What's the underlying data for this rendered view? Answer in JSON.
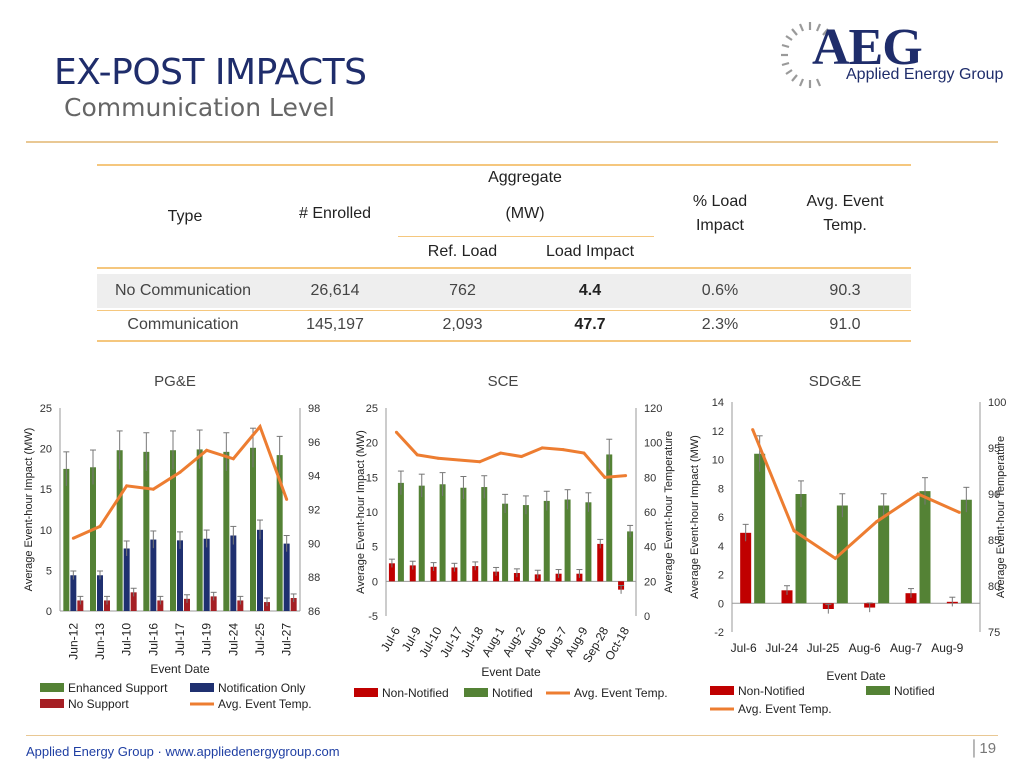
{
  "slide": {
    "title": "EX-POST IMPACTS",
    "subtitle": "Communication Level",
    "footer": "Applied Energy Group · www.appliedenergygroup.com",
    "page_number": "19"
  },
  "logo": {
    "brand": "AEG",
    "name": "Applied Energy Group"
  },
  "colors": {
    "title": "#1f2d6b",
    "rule": "#e9c894",
    "orange": "#ed7d31",
    "green": "#548235",
    "navy": "#1f3070",
    "red": "#c00000",
    "darkred": "#a51f24"
  },
  "summary_table": {
    "headers": {
      "type": "Type",
      "enrolled": "# Enrolled",
      "aggregate": "Aggregate",
      "mw": "(MW)",
      "ref_load": "Ref. Load",
      "load_impact": "Load Impact",
      "pct_load": "% Load",
      "pct_impact": "Impact",
      "avg_event": "Avg. Event",
      "temp": "Temp."
    },
    "rows": [
      {
        "type": "No Communication",
        "enrolled": "26,614",
        "ref_load": "762",
        "load_impact": "4.4",
        "pct": "0.6%",
        "temp": "90.3"
      },
      {
        "type": "Communication",
        "enrolled": "145,197",
        "ref_load": "2,093",
        "load_impact": "47.7",
        "pct": "2.3%",
        "temp": "91.0"
      }
    ]
  },
  "chart_data": [
    {
      "type": "bar",
      "title": "PG&E",
      "xlabel": "Event Date",
      "ylabel": "Average Event-hour Impact (MW)",
      "y2label": "",
      "ylim": [
        0,
        25
      ],
      "yticks": [
        0,
        5,
        10,
        15,
        20,
        25
      ],
      "y2lim": [
        86,
        98
      ],
      "y2ticks": [
        86,
        88,
        90,
        92,
        94,
        96,
        98
      ],
      "categories": [
        "Jun-12",
        "Jun-13",
        "Jul-10",
        "Jul-16",
        "Jul-17",
        "Jul-19",
        "Jul-24",
        "Jul-25",
        "Jul-27"
      ],
      "series": [
        {
          "name": "Enhanced Support",
          "color": "#548235",
          "values": [
            17.5,
            17.7,
            19.8,
            19.6,
            19.8,
            19.9,
            19.6,
            20.1,
            19.2
          ]
        },
        {
          "name": "Notification Only",
          "color": "#1f3070",
          "values": [
            4.4,
            4.4,
            7.7,
            8.8,
            8.7,
            8.9,
            9.3,
            10.0,
            8.3
          ]
        },
        {
          "name": "No Support",
          "color": "#a51f24",
          "values": [
            1.3,
            1.3,
            2.3,
            1.3,
            1.5,
            1.8,
            1.3,
            1.1,
            1.6
          ]
        },
        {
          "name": "Avg. Event Temp.",
          "color": "#ed7d31",
          "axis": "right",
          "values": [
            90.3,
            91.0,
            93.4,
            93.2,
            94.2,
            95.5,
            95.0,
            96.9,
            92.6
          ]
        }
      ],
      "legend": [
        "Enhanced Support",
        "Notification Only",
        "No Support",
        "Avg. Event Temp."
      ]
    },
    {
      "type": "bar",
      "title": "SCE",
      "xlabel": "Event Date",
      "ylabel": "Average Event-hour Impact (MW)",
      "y2label": "Average Event-hour Temperature",
      "ylim": [
        -5,
        25
      ],
      "yticks": [
        -5,
        0,
        5,
        10,
        15,
        20,
        25
      ],
      "y2lim": [
        0,
        120
      ],
      "y2ticks": [
        0,
        20,
        40,
        60,
        80,
        100,
        120
      ],
      "categories": [
        "Jul-6",
        "Jul-9",
        "Jul-10",
        "Jul-17",
        "Jul-18",
        "Aug-1",
        "Aug-2",
        "Aug-6",
        "Aug-7",
        "Aug-9",
        "Sep-28",
        "Oct-18"
      ],
      "series": [
        {
          "name": "Non-Notified",
          "color": "#c00000",
          "values": [
            2.6,
            2.3,
            2.1,
            2.0,
            2.2,
            1.4,
            1.2,
            1.0,
            1.1,
            1.1,
            5.4,
            -1.2
          ]
        },
        {
          "name": "Notified",
          "color": "#548235",
          "values": [
            14.2,
            13.8,
            14.0,
            13.5,
            13.6,
            11.2,
            11.0,
            11.6,
            11.8,
            11.4,
            18.3,
            7.2
          ]
        },
        {
          "name": "Avg. Event Temp.",
          "color": "#ed7d31",
          "axis": "right",
          "values": [
            106,
            93,
            91,
            90,
            89,
            94,
            92,
            97,
            96,
            94,
            80,
            81
          ]
        }
      ],
      "legend": [
        "Non-Notified",
        "Notified",
        "Avg. Event Temp."
      ]
    },
    {
      "type": "bar",
      "title": "SDG&E",
      "xlabel": "Event Date",
      "ylabel": "Average Event-hour Impact (MW)",
      "y2label": "Average Event-hour Temperature",
      "ylim": [
        -2,
        14
      ],
      "yticks": [
        -2,
        0,
        2,
        4,
        6,
        8,
        10,
        12,
        14
      ],
      "y2lim": [
        75,
        100
      ],
      "y2ticks": [
        75,
        80,
        85,
        90,
        95,
        100
      ],
      "categories": [
        "Jul-6",
        "Jul-24",
        "Jul-25",
        "Aug-6",
        "Aug-7",
        "Aug-9"
      ],
      "series": [
        {
          "name": "Non-Notified",
          "color": "#c00000",
          "values": [
            4.9,
            0.9,
            -0.4,
            -0.3,
            0.7,
            0.1
          ]
        },
        {
          "name": "Notified",
          "color": "#548235",
          "values": [
            10.4,
            7.6,
            6.8,
            6.8,
            7.8,
            7.2
          ]
        },
        {
          "name": "Avg. Event Temp.",
          "color": "#ed7d31",
          "axis": "right",
          "values": [
            97,
            86,
            83,
            87,
            90,
            88
          ]
        }
      ],
      "legend": [
        "Non-Notified",
        "Notified",
        "Avg. Event Temp."
      ]
    }
  ]
}
